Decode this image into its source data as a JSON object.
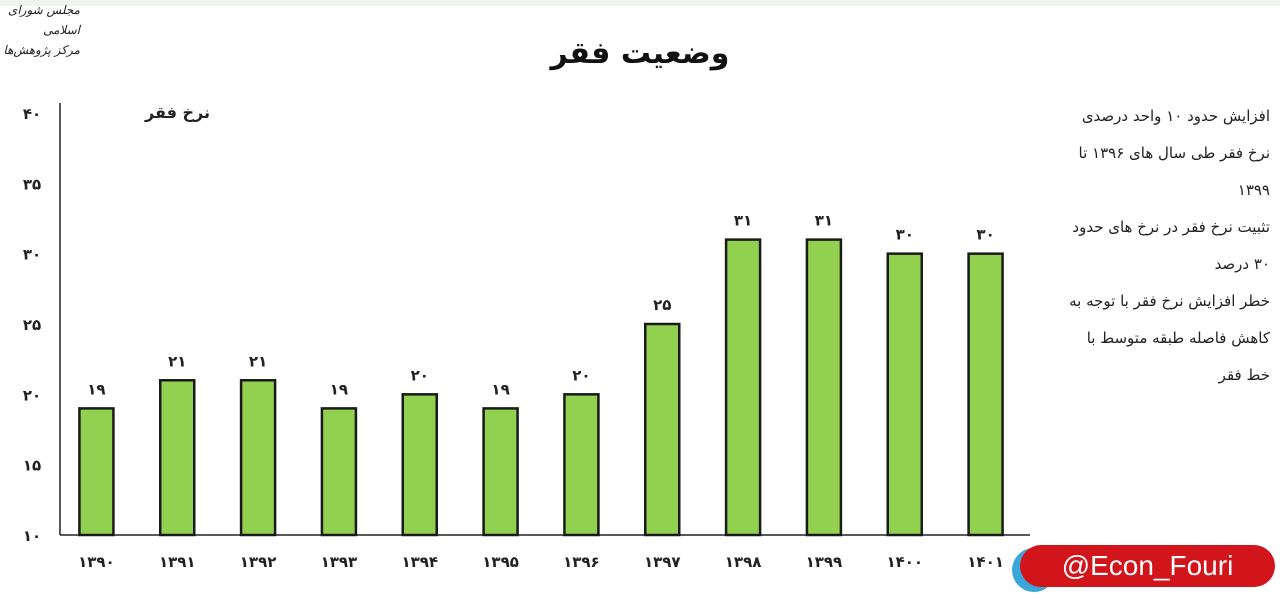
{
  "logo": {
    "line1": "مجلس شورای اسلامی",
    "line2": "مرکز پژوهش‌ها"
  },
  "watermark": "@Econ_Fouri",
  "bullets": [
    "افزایش حدود ۱۰ واحد درصدی نرخ فقر طی سال های ۱۳۹۶ تا ۱۳۹۹",
    "تثبیت نرخ فقر در نرخ های حدود ۳۰ درصد",
    "خطر افزایش نرخ فقر با توجه به کاهش فاصله طبقه متوسط با خط فقر"
  ],
  "chart_data": {
    "type": "bar",
    "title": "وضعیت فقر",
    "ylabel": "نرخ فقر",
    "xlabel": "",
    "categories": [
      "۱۳۹۰",
      "۱۳۹۱",
      "۱۳۹۲",
      "۱۳۹۳",
      "۱۳۹۴",
      "۱۳۹۵",
      "۱۳۹۶",
      "۱۳۹۷",
      "۱۳۹۸",
      "۱۳۹۹",
      "۱۴۰۰",
      "۱۴۰۱"
    ],
    "values": [
      19,
      21,
      21,
      19,
      20,
      19,
      20,
      25,
      31,
      31,
      30,
      30
    ],
    "data_labels": [
      "۱۹",
      "۲۱",
      "۲۱",
      "۱۹",
      "۲۰",
      "۱۹",
      "۲۰",
      "۲۵",
      "۳۱",
      "۳۱",
      "۳۰",
      "۳۰"
    ],
    "ylim": [
      10,
      40
    ],
    "yticks": [
      10,
      15,
      20,
      25,
      30,
      35,
      40
    ],
    "ytick_labels": [
      "۱۰",
      "۱۵",
      "۲۰",
      "۲۵",
      "۳۰",
      "۳۵",
      "۴۰"
    ],
    "bar_color": "#92d050",
    "grid": false
  }
}
